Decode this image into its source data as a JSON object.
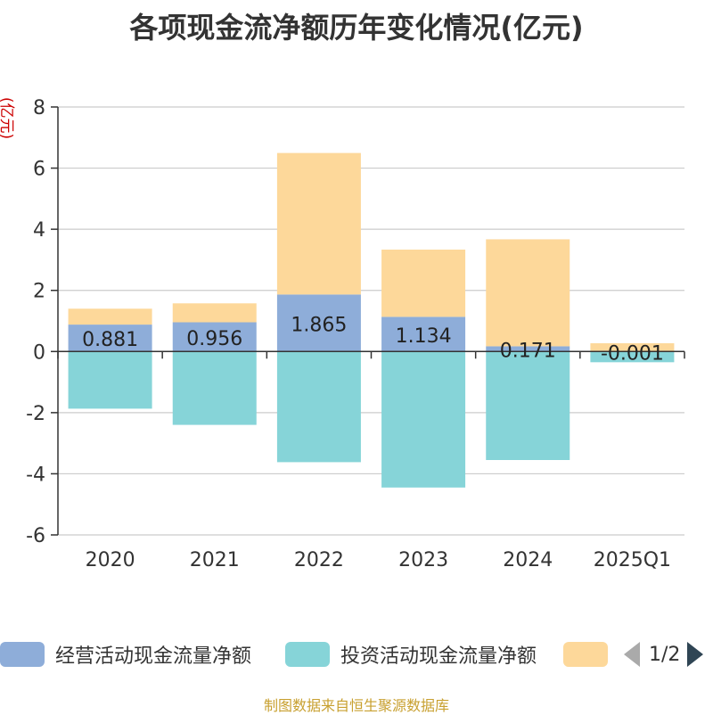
{
  "chart_data": {
    "type": "bar",
    "stacked": true,
    "title": "各项现金流净额历年变化情况(亿元)",
    "ylabel": "(亿元)",
    "xlabel": "",
    "ylim": [
      -6,
      8
    ],
    "yticks": [
      8,
      6,
      4,
      2,
      0,
      -2,
      -4,
      -6
    ],
    "categories": [
      "2020",
      "2021",
      "2022",
      "2023",
      "2024",
      "2025Q1"
    ],
    "series": [
      {
        "name": "经营活动现金流量净额",
        "color": "#8eadd9",
        "values": [
          0.881,
          0.956,
          1.865,
          1.134,
          0.171,
          -0.001
        ],
        "labels": [
          "0.881",
          "0.956",
          "1.865",
          "1.134",
          "0.171",
          "-0.001"
        ]
      },
      {
        "name": "投资活动现金流量净额",
        "color": "#86d4d8",
        "values": [
          -1.87,
          -2.4,
          -3.62,
          -4.45,
          -3.55,
          -0.35
        ]
      },
      {
        "name": "",
        "color": "#fdd89a",
        "values": [
          0.52,
          0.62,
          4.63,
          2.2,
          3.5,
          0.27
        ]
      }
    ],
    "grid": true,
    "legend": "bottom"
  },
  "legend": {
    "pager_text": "1/2"
  },
  "footer": {
    "source": "制图数据来自恒生聚源数据库"
  }
}
